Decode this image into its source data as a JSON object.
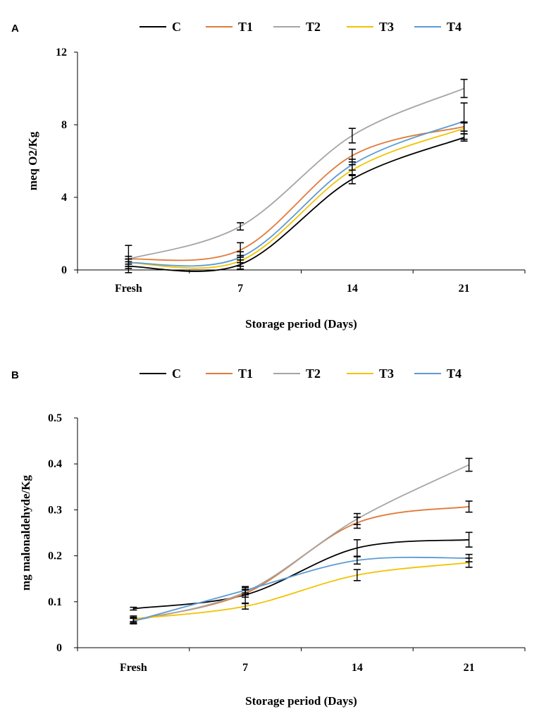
{
  "chart_data": [
    {
      "type": "line",
      "panel": "A",
      "categories": [
        "Fresh",
        "7",
        "14",
        "21"
      ],
      "xlabel": "Storage period  (Days)",
      "ylabel": "meq O2/Kg",
      "ylim": [
        0,
        12
      ],
      "yticks": [
        "0",
        "4",
        "8",
        "12"
      ],
      "legend_position": "top",
      "series": [
        {
          "name": "C",
          "color": "#000000",
          "values": [
            0.2,
            0.3,
            5.0,
            7.3
          ],
          "errors": [
            0.12,
            0.25,
            0.25,
            0.2
          ]
        },
        {
          "name": "T1",
          "color": "#E07B39",
          "values": [
            0.6,
            1.1,
            6.3,
            7.9
          ],
          "errors": [
            0.15,
            0.4,
            0.35,
            0.25
          ]
        },
        {
          "name": "T2",
          "color": "#A5A5A5",
          "values": [
            0.6,
            2.4,
            7.4,
            10.0
          ],
          "errors": [
            0.75,
            0.2,
            0.4,
            0.5
          ]
        },
        {
          "name": "T3",
          "color": "#F2C200",
          "values": [
            0.4,
            0.5,
            5.5,
            7.8
          ],
          "errors": [
            0.2,
            0.3,
            0.3,
            0.3
          ]
        },
        {
          "name": "T4",
          "color": "#5B9BD5",
          "values": [
            0.4,
            0.7,
            5.8,
            8.2
          ],
          "errors": [
            0.2,
            0.3,
            0.3,
            1.0
          ]
        }
      ]
    },
    {
      "type": "line",
      "panel": "B",
      "categories": [
        "Fresh",
        "7",
        "14",
        "21"
      ],
      "xlabel": "Storage period  (Days)",
      "ylabel": "mg malonaldehyde/Kg",
      "ylim": [
        0,
        0.5
      ],
      "yticks": [
        "0",
        "0.1",
        "0.2",
        "0.3",
        "0.4",
        "0.5"
      ],
      "legend_position": "top",
      "series": [
        {
          "name": "C",
          "color": "#000000",
          "values": [
            0.085,
            0.115,
            0.217,
            0.235
          ],
          "errors": [
            0.003,
            0.018,
            0.018,
            0.016
          ]
        },
        {
          "name": "T1",
          "color": "#E07B39",
          "values": [
            0.06,
            0.118,
            0.272,
            0.307
          ],
          "errors": [
            0.006,
            0.008,
            0.012,
            0.012
          ]
        },
        {
          "name": "T2",
          "color": "#A5A5A5",
          "values": [
            0.058,
            0.121,
            0.28,
            0.398
          ],
          "errors": [
            0.006,
            0.006,
            0.012,
            0.014
          ]
        },
        {
          "name": "T3",
          "color": "#F2C200",
          "values": [
            0.063,
            0.09,
            0.158,
            0.185
          ],
          "errors": [
            0.006,
            0.006,
            0.012,
            0.01
          ]
        },
        {
          "name": "T4",
          "color": "#5B9BD5",
          "values": [
            0.058,
            0.125,
            0.19,
            0.195
          ],
          "errors": [
            0.006,
            0.006,
            0.008,
            0.008
          ]
        }
      ]
    }
  ]
}
